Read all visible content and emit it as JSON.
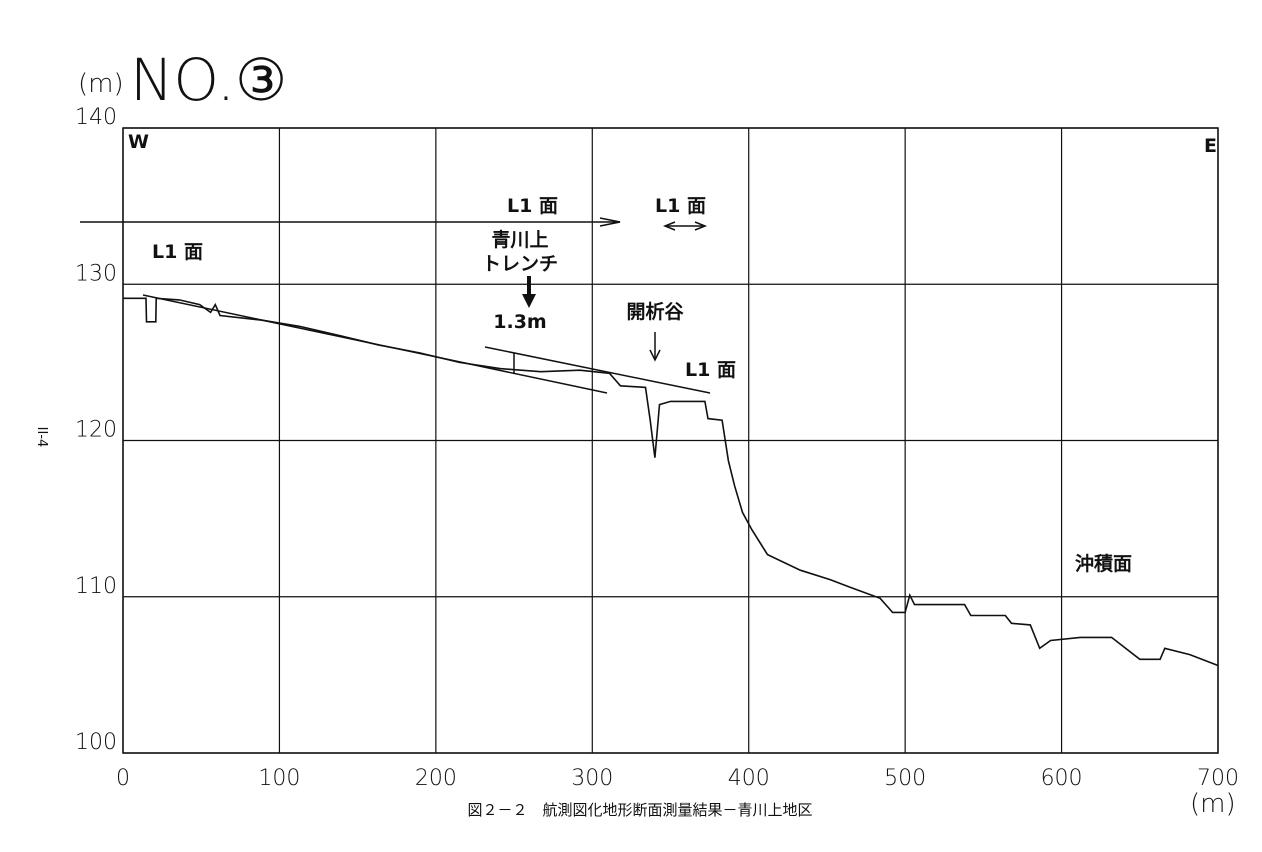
{
  "chart_data": {
    "type": "line",
    "title": "NO.③",
    "y_label": "(m)",
    "x_label": "(m)",
    "x": [
      0,
      14.7,
      15,
      21,
      21.2,
      36,
      49,
      56,
      59,
      62,
      89,
      113,
      139,
      164,
      190,
      215,
      241,
      267,
      292,
      311,
      318,
      334,
      337,
      340,
      343,
      350,
      372,
      374,
      383,
      387,
      391,
      396,
      402,
      412,
      433,
      452,
      465,
      484,
      492,
      500,
      503,
      506,
      538,
      542,
      564,
      568,
      580,
      586,
      593,
      612,
      632,
      650,
      663,
      666,
      682,
      700
    ],
    "values": [
      129.1,
      129.1,
      127.6,
      127.6,
      129.1,
      129.0,
      128.7,
      128.2,
      128.7,
      128.0,
      127.7,
      127.3,
      126.7,
      126.1,
      125.6,
      125.0,
      124.6,
      124.4,
      124.5,
      124.3,
      123.5,
      123.4,
      121.3,
      118.9,
      122.3,
      122.5,
      122.5,
      121.4,
      121.3,
      118.7,
      117.1,
      115.4,
      114.3,
      112.7,
      111.7,
      111.1,
      110.6,
      109.9,
      109.0,
      109.0,
      110.1,
      109.5,
      109.5,
      108.8,
      108.8,
      108.3,
      108.2,
      106.7,
      107.2,
      107.4,
      107.4,
      106.0,
      106.0,
      106.7,
      106.3,
      105.6
    ],
    "color": "#111111",
    "xlim": [
      0,
      700
    ],
    "ylim": [
      100,
      140
    ],
    "xticks": [
      0,
      100,
      200,
      300,
      400,
      500,
      600,
      700
    ],
    "yticks": [
      100,
      110,
      120,
      130,
      140
    ],
    "grid": true,
    "annotations": [
      "W",
      "E",
      "L1 面",
      "L1 面",
      "L1 面",
      "青川上",
      "トレンチ",
      "1.3m",
      "開析谷",
      "L1 面",
      "沖積面"
    ],
    "caption": "図２－２　航測図化地形断面測量結果－青川上地区",
    "page_number": "II-4"
  }
}
